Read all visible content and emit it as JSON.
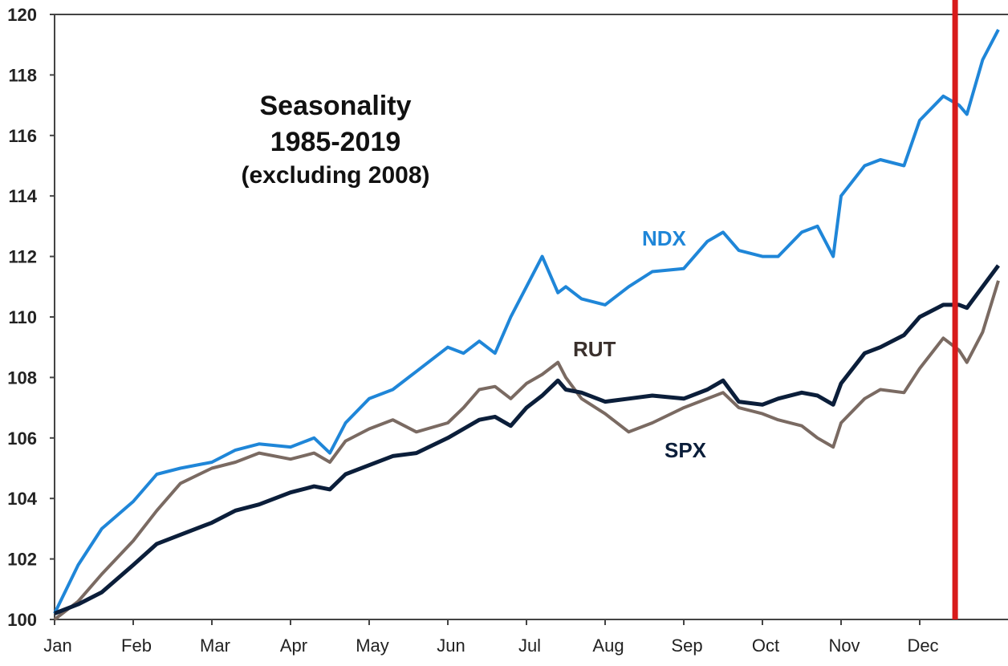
{
  "chart_data": {
    "type": "line",
    "title": "Seasonality",
    "subtitle": "1985-2019",
    "subtitle2": "(excluding 2008)",
    "xlabel": "",
    "ylabel": "",
    "ylim": [
      100,
      120
    ],
    "yticks": [
      "100",
      "102",
      "104",
      "106",
      "108",
      "110",
      "112",
      "114",
      "116",
      "118",
      "120"
    ],
    "categories": [
      "Jan",
      "Feb",
      "Mar",
      "Apr",
      "May",
      "Jun",
      "Jul",
      "Aug",
      "Sep",
      "Oct",
      "Nov",
      "Dec"
    ],
    "x": [
      0,
      0.3,
      0.6,
      1.0,
      1.3,
      1.6,
      2.0,
      2.3,
      2.6,
      3.0,
      3.3,
      3.5,
      3.7,
      4.0,
      4.3,
      4.6,
      5.0,
      5.2,
      5.4,
      5.6,
      5.8,
      6.0,
      6.2,
      6.4,
      6.5,
      6.7,
      7.0,
      7.3,
      7.6,
      8.0,
      8.3,
      8.5,
      8.7,
      9.0,
      9.2,
      9.5,
      9.7,
      9.9,
      10.0,
      10.3,
      10.5,
      10.8,
      11.0,
      11.3,
      11.5,
      11.6,
      11.8,
      12.0
    ],
    "series": [
      {
        "name": "NDX",
        "color": "#1f86d8",
        "values": [
          100.2,
          101.8,
          103.0,
          103.9,
          104.8,
          105.0,
          105.2,
          105.6,
          105.8,
          105.7,
          106.0,
          105.5,
          106.5,
          107.3,
          107.6,
          108.2,
          109.0,
          108.8,
          109.2,
          108.8,
          110.0,
          111.0,
          112.0,
          110.8,
          111.0,
          110.6,
          110.4,
          111.0,
          111.5,
          111.6,
          112.5,
          112.8,
          112.2,
          112.0,
          112.0,
          112.8,
          113.0,
          112.0,
          114.0,
          115.0,
          115.2,
          115.0,
          116.5,
          117.3,
          117.0,
          116.7,
          118.5,
          119.5
        ]
      },
      {
        "name": "RUT",
        "color": "#7a6a62",
        "values": [
          100.0,
          100.6,
          101.5,
          102.6,
          103.6,
          104.5,
          105.0,
          105.2,
          105.5,
          105.3,
          105.5,
          105.2,
          105.9,
          106.3,
          106.6,
          106.2,
          106.5,
          107.0,
          107.6,
          107.7,
          107.3,
          107.8,
          108.1,
          108.5,
          108.0,
          107.3,
          106.8,
          106.2,
          106.5,
          107.0,
          107.3,
          107.5,
          107.0,
          106.8,
          106.6,
          106.4,
          106.0,
          105.7,
          106.5,
          107.3,
          107.6,
          107.5,
          108.3,
          109.3,
          108.9,
          108.5,
          109.5,
          111.2
        ]
      },
      {
        "name": "SPX",
        "color": "#0b1e3a",
        "values": [
          100.2,
          100.5,
          100.9,
          101.8,
          102.5,
          102.8,
          103.2,
          103.6,
          103.8,
          104.2,
          104.4,
          104.3,
          104.8,
          105.1,
          105.4,
          105.5,
          106.0,
          106.3,
          106.6,
          106.7,
          106.4,
          107.0,
          107.4,
          107.9,
          107.6,
          107.5,
          107.2,
          107.3,
          107.4,
          107.3,
          107.6,
          107.9,
          107.2,
          107.1,
          107.3,
          107.5,
          107.4,
          107.1,
          107.8,
          108.8,
          109.0,
          109.4,
          110.0,
          110.4,
          110.4,
          110.3,
          111.0,
          111.7
        ]
      }
    ],
    "marker_month": 11.45,
    "marker_color": "#d81b1b",
    "grid": false,
    "legend": "inline"
  }
}
